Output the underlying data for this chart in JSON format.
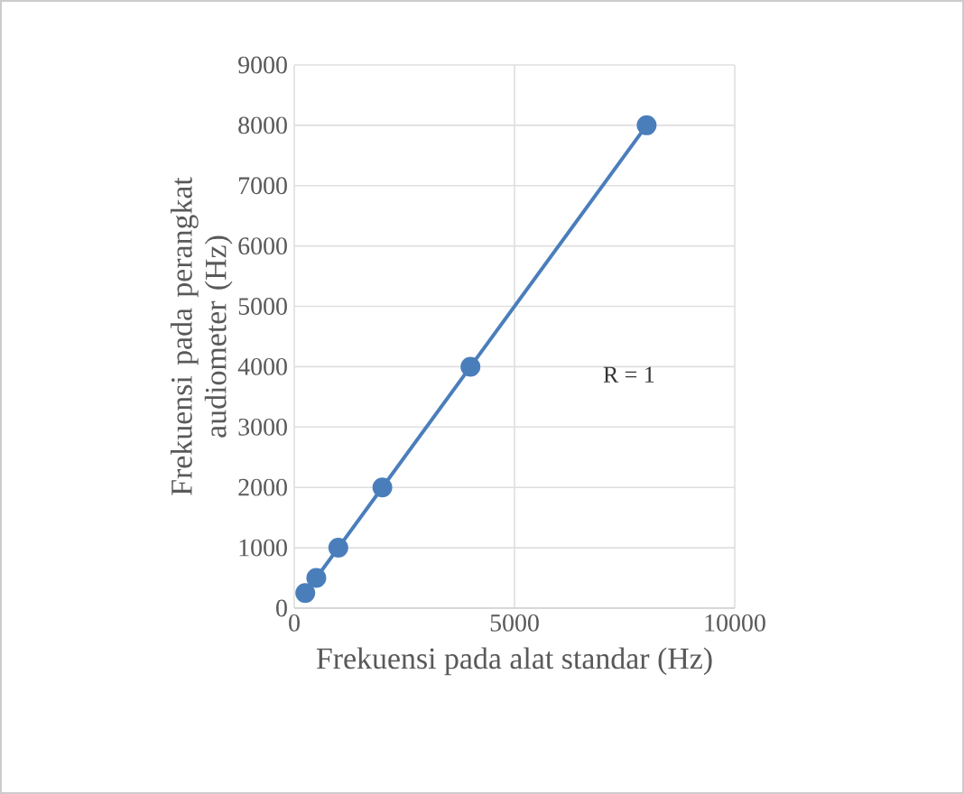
{
  "chart_data": {
    "type": "line",
    "xlabel": "Frekuensi pada alat standar (Hz)",
    "ylabel": "Frekuensi pada perangkat audiometer (Hz)",
    "x": [
      250,
      500,
      1000,
      2000,
      4000,
      8000
    ],
    "series": [
      {
        "color": "#4a7ebb",
        "values": [
          250,
          500,
          1000,
          2000,
          4000,
          8000
        ]
      }
    ],
    "xlim": [
      0,
      10000
    ],
    "ylim": [
      0,
      9000
    ],
    "xticks": [
      0,
      5000,
      10000
    ],
    "yticks": [
      0,
      1000,
      2000,
      3000,
      4000,
      5000,
      6000,
      7000,
      8000,
      9000
    ],
    "grid": true,
    "marker": "circle",
    "line_style": "solid",
    "annotations": [
      "R = 1"
    ]
  }
}
